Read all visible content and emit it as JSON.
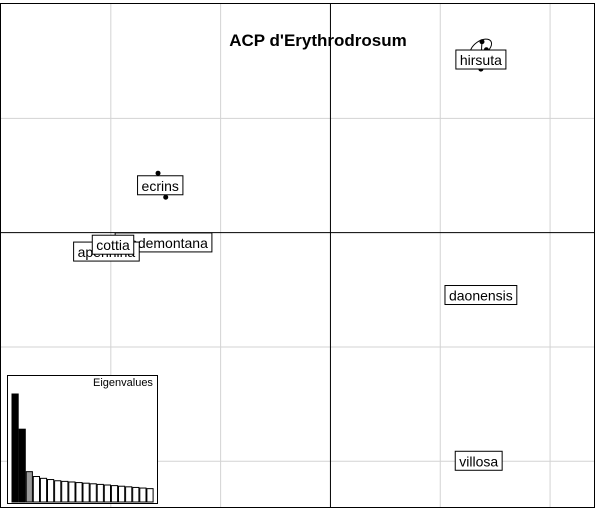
{
  "chart_data": {
    "type": "scatter",
    "title": "ACP d'Erythrodrosum",
    "xlim": [
      -3.0,
      2.4
    ],
    "ylim": [
      -2.4,
      2.0
    ],
    "grid": true,
    "grid_x": [
      -2.0,
      -1.0,
      0.0,
      1.0,
      2.0
    ],
    "grid_y": [
      -2.0,
      -1.0,
      0.0,
      1.0
    ],
    "axes_at_zero": true,
    "groups": [
      {
        "name": "hirsuta",
        "center": [
          1.37,
          1.51
        ],
        "points": [
          [
            1.3,
            1.5
          ],
          [
            1.38,
            1.67
          ],
          [
            1.37,
            1.43
          ],
          [
            1.42,
            1.6
          ],
          [
            1.35,
            1.55
          ]
        ],
        "ellipse": {
          "rx": 0.11,
          "ry": 0.06,
          "angle": -35
        }
      },
      {
        "name": "ecrins",
        "center": [
          -1.55,
          0.41
        ],
        "points": [
          [
            -1.57,
            0.52
          ],
          [
            -1.5,
            0.31
          ]
        ],
        "ellipse": null
      },
      {
        "name": "piedemontana",
        "center": [
          -1.52,
          -0.09
        ],
        "points": [],
        "ellipse": null
      },
      {
        "name": "apennina",
        "center": [
          -2.04,
          -0.17
        ],
        "points": [],
        "ellipse": null
      },
      {
        "name": "cottia",
        "center": [
          -1.98,
          -0.11
        ],
        "points": [],
        "ellipse": null
      },
      {
        "name": "daonensis",
        "center": [
          1.37,
          -0.55
        ],
        "points": [
          [
            1.37,
            -0.5
          ]
        ],
        "ellipse": null
      },
      {
        "name": "villosa",
        "center": [
          1.35,
          -2.0
        ],
        "points": [],
        "ellipse": null
      }
    ],
    "eigenvalues": {
      "title": "Eigenvalues",
      "values": [
        8.9,
        6.0,
        2.5,
        2.1,
        1.95,
        1.85,
        1.75,
        1.7,
        1.65,
        1.6,
        1.55,
        1.5,
        1.45,
        1.4,
        1.35,
        1.3,
        1.25,
        1.2,
        1.15,
        1.1
      ],
      "black_count": 2,
      "grey_count": 1
    }
  }
}
